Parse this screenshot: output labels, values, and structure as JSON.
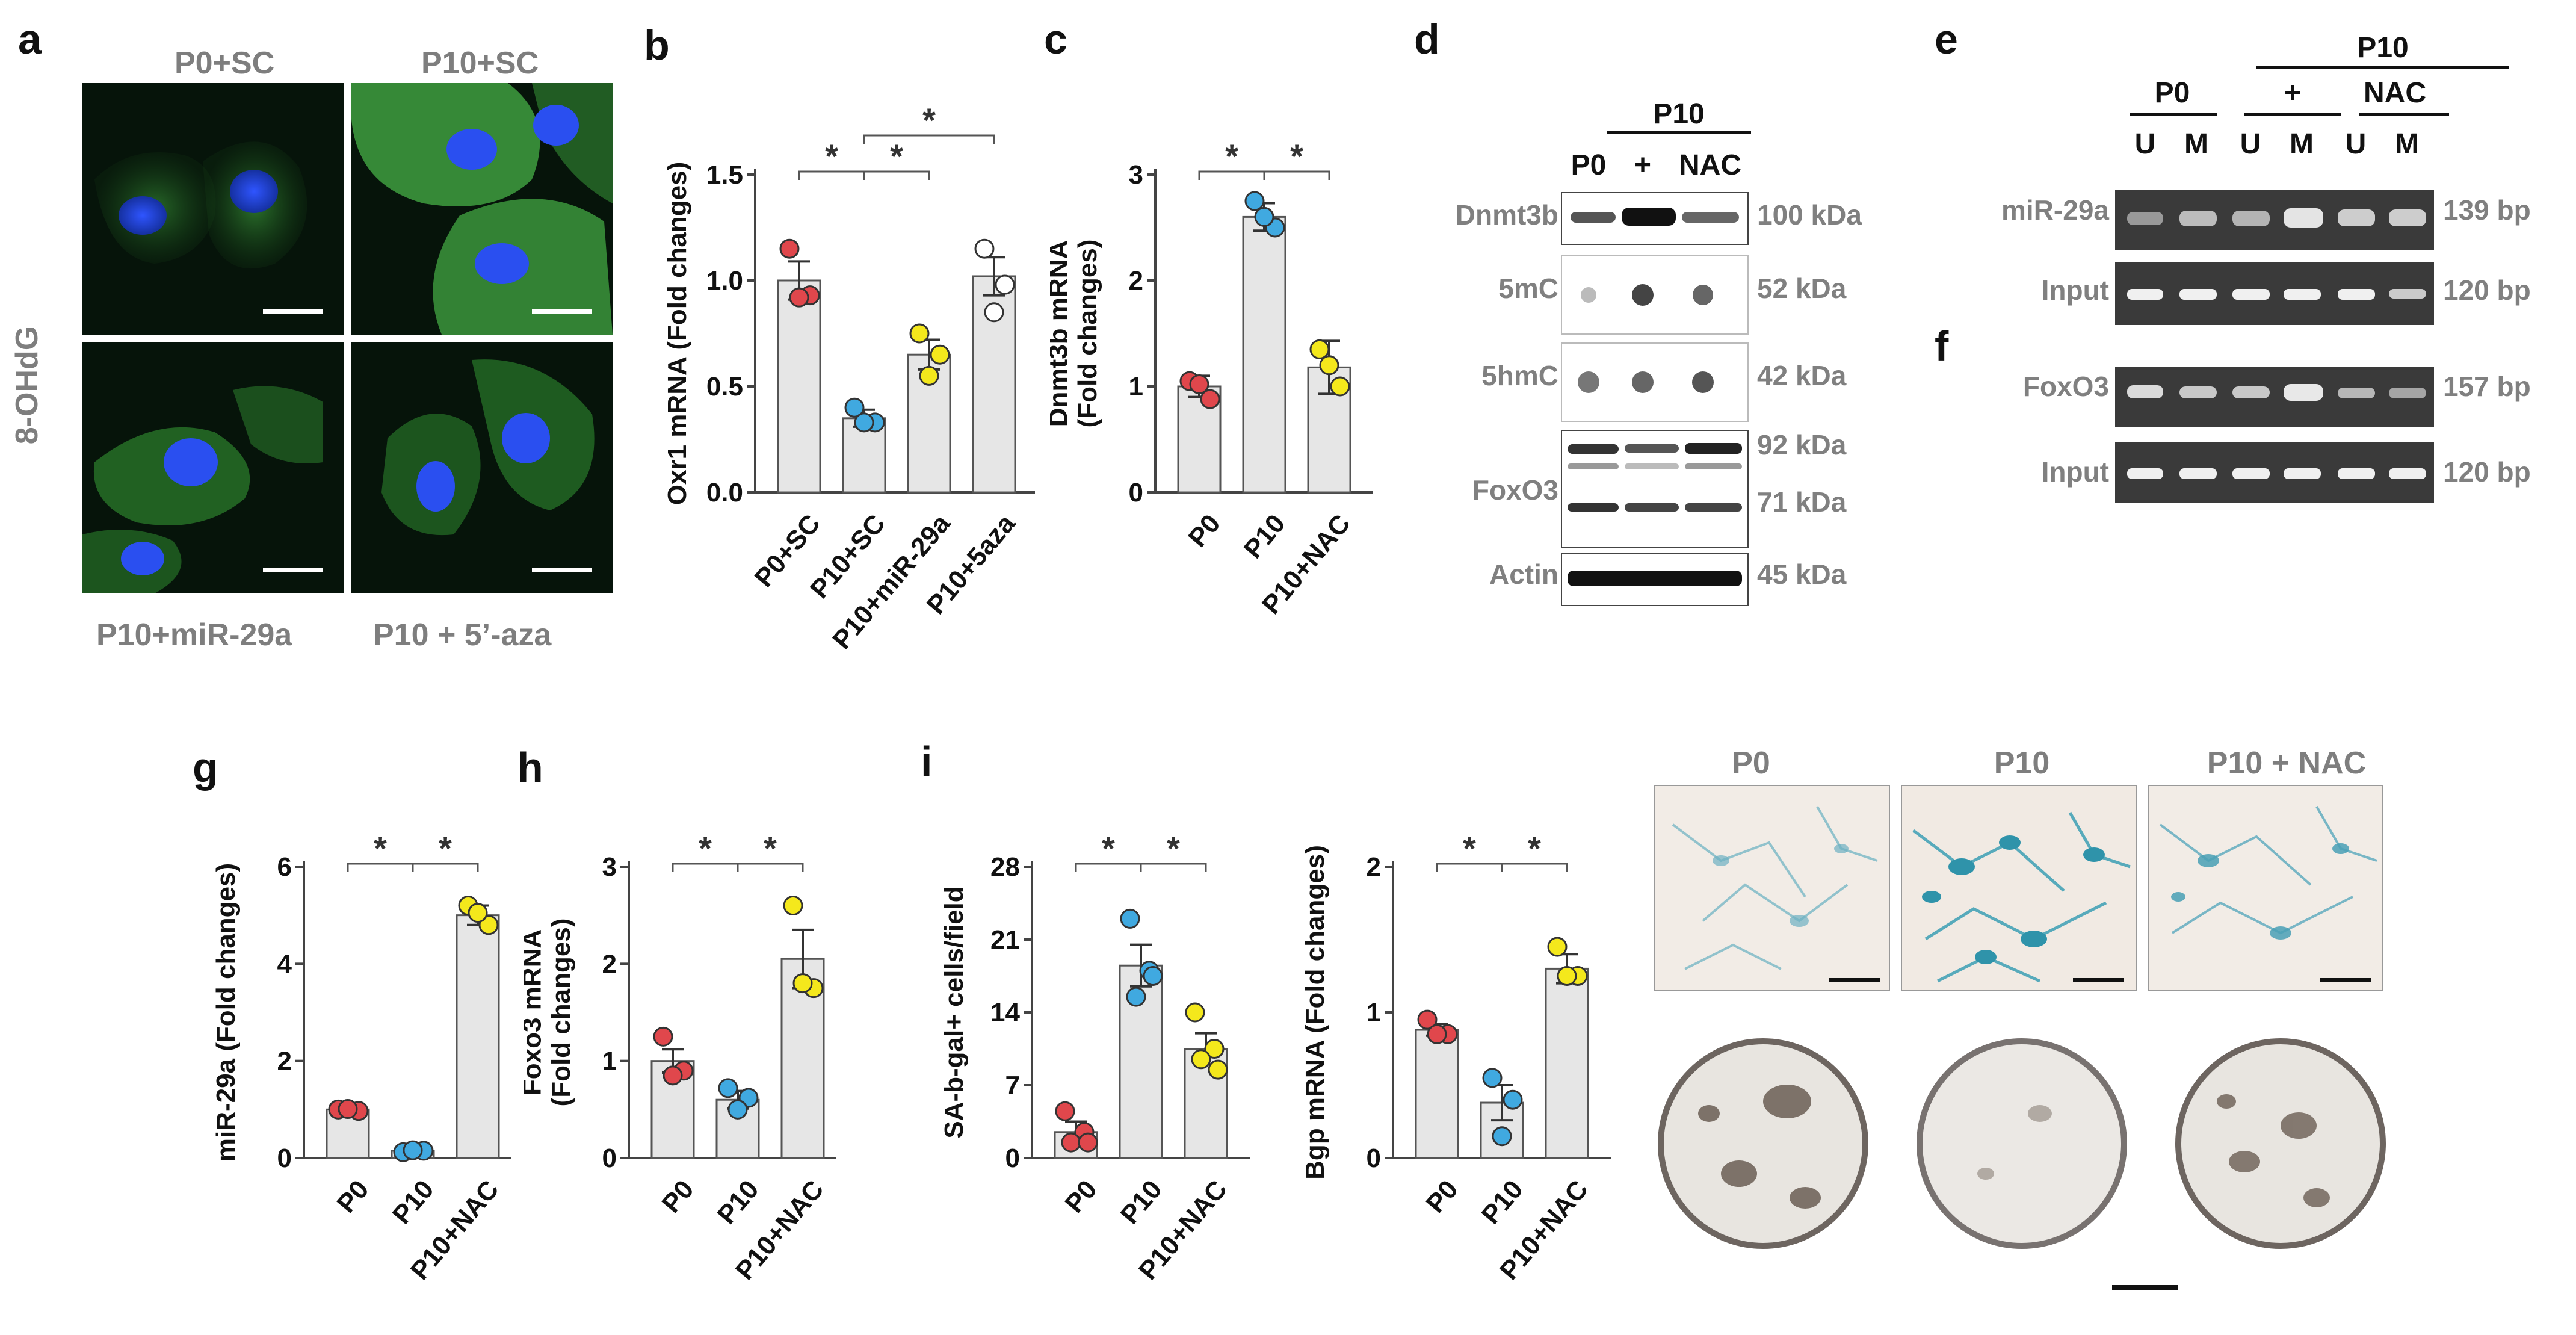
{
  "panel_labels": [
    "a",
    "b",
    "c",
    "d",
    "e",
    "f",
    "g",
    "h",
    "i"
  ],
  "panel_a": {
    "side_label": "8-OHdG",
    "captions": [
      "P0+SC",
      "P10+SC",
      "P10+miR-29a",
      "P10 + 5’-aza"
    ],
    "colors": {
      "cytoplasm": "#2f8f2f",
      "nucleus": "#1d3fd0",
      "background": "#06140a"
    }
  },
  "chart_data": [
    {
      "panel": "b",
      "type": "bar",
      "ylabel": "Oxr1 mRNA (Fold changes)",
      "categories": [
        "P0+SC",
        "P10+SC",
        "P10+miR-29a",
        "P10+5aza"
      ],
      "values": [
        1.0,
        0.35,
        0.65,
        1.02
      ],
      "errors": [
        0.09,
        0.04,
        0.07,
        0.09
      ],
      "points": [
        [
          1.15,
          0.93,
          0.92
        ],
        [
          0.4,
          0.33,
          0.33
        ],
        [
          0.75,
          0.65,
          0.55
        ],
        [
          1.15,
          0.98,
          0.85
        ]
      ],
      "point_colors": [
        "#e0474c",
        "#40a9e0",
        "#f4e81c",
        "#ffffff"
      ],
      "ylim": [
        0,
        1.5
      ],
      "yticks": [
        "0.0",
        "0.5",
        "1.0",
        "1.5"
      ],
      "significance": [
        [
          1,
          2
        ],
        [
          2,
          3
        ],
        [
          2,
          4
        ]
      ]
    },
    {
      "panel": "c",
      "type": "bar",
      "ylabel": "Dnmt3b mRNA (Fold changes)",
      "categories": [
        "P0",
        "P10",
        "P10+NAC"
      ],
      "values": [
        1.0,
        2.6,
        1.18
      ],
      "errors": [
        0.1,
        0.13,
        0.25
      ],
      "points": [
        [
          1.05,
          0.88,
          1.02
        ],
        [
          2.75,
          2.5,
          2.6
        ],
        [
          1.35,
          1.0,
          1.2
        ]
      ],
      "point_colors": [
        "#e0474c",
        "#40a9e0",
        "#f4e81c"
      ],
      "ylim": [
        0,
        3
      ],
      "yticks": [
        "0",
        "1",
        "2",
        "3"
      ],
      "significance": [
        [
          1,
          2
        ],
        [
          2,
          3
        ]
      ]
    },
    {
      "panel": "g",
      "type": "bar",
      "ylabel": "miR-29a (Fold changes)",
      "categories": [
        "P0",
        "P10",
        "P10+NAC"
      ],
      "values": [
        1.0,
        0.15,
        5.0
      ],
      "errors": [
        0.03,
        0.03,
        0.2
      ],
      "points": [
        [
          1.0,
          0.97,
          1.01
        ],
        [
          0.12,
          0.15,
          0.16
        ],
        [
          5.2,
          4.8,
          5.05
        ]
      ],
      "point_colors": [
        "#e0474c",
        "#40a9e0",
        "#f4e81c"
      ],
      "ylim": [
        0,
        6
      ],
      "yticks": [
        "0",
        "2",
        "4",
        "6"
      ],
      "significance": [
        [
          1,
          2
        ],
        [
          2,
          3
        ]
      ]
    },
    {
      "panel": "h",
      "type": "bar",
      "ylabel": "Foxo3 mRNA (Fold changes)",
      "categories": [
        "P0",
        "P10",
        "P10+NAC"
      ],
      "values": [
        1.0,
        0.6,
        2.05
      ],
      "errors": [
        0.12,
        0.09,
        0.3
      ],
      "points": [
        [
          1.25,
          0.9,
          0.85
        ],
        [
          0.72,
          0.62,
          0.5
        ],
        [
          2.6,
          1.75,
          1.8
        ]
      ],
      "point_colors": [
        "#e0474c",
        "#40a9e0",
        "#f4e81c"
      ],
      "ylim": [
        0,
        3
      ],
      "yticks": [
        "0",
        "1",
        "2",
        "3"
      ],
      "significance": [
        [
          1,
          2
        ],
        [
          2,
          3
        ]
      ]
    },
    {
      "panel": "i1",
      "type": "bar",
      "ylabel": "SA-b-gal+ cells/field",
      "categories": [
        "P0",
        "P10",
        "P10+NAC"
      ],
      "values": [
        2.5,
        18.5,
        10.5
      ],
      "errors": [
        1.0,
        2.0,
        1.5
      ],
      "points": [
        [
          4.5,
          2.5,
          1.5,
          1.5
        ],
        [
          23,
          18,
          15.5,
          17.5
        ],
        [
          14,
          10.5,
          9.5,
          8.5
        ]
      ],
      "point_colors": [
        "#e0474c",
        "#40a9e0",
        "#f4e81c"
      ],
      "ylim": [
        0,
        28
      ],
      "yticks": [
        "0",
        "7",
        "14",
        "21",
        "28"
      ],
      "significance": [
        [
          1,
          2
        ],
        [
          2,
          3
        ]
      ]
    },
    {
      "panel": "i2",
      "type": "bar",
      "ylabel": "Bgp mRNA (Fold changes)",
      "categories": [
        "P0",
        "P10",
        "P10+NAC"
      ],
      "values": [
        0.88,
        0.38,
        1.3
      ],
      "errors": [
        0.04,
        0.12,
        0.1
      ],
      "points": [
        [
          0.95,
          0.85,
          0.85
        ],
        [
          0.55,
          0.4,
          0.15
        ],
        [
          1.45,
          1.25,
          1.25
        ]
      ],
      "point_colors": [
        "#e0474c",
        "#40a9e0",
        "#f4e81c"
      ],
      "ylim": [
        0,
        2
      ],
      "yticks": [
        "0",
        "1",
        "2"
      ],
      "significance": [
        [
          1,
          2
        ],
        [
          2,
          3
        ]
      ]
    }
  ],
  "panel_d": {
    "group_label": "P10",
    "lanes": [
      "P0",
      "+",
      "NAC"
    ],
    "rows": [
      {
        "name": "Dnmt3b",
        "size": "100 kDa"
      },
      {
        "name": "5mC",
        "size": "52 kDa"
      },
      {
        "name": "5hmC",
        "size": "42 kDa"
      },
      {
        "name": "FoxO3",
        "size": "92 kDa",
        "size2": "71 kDa"
      },
      {
        "name": "Actin",
        "size": "45 kDa"
      }
    ]
  },
  "panel_e": {
    "group_label": "P10",
    "sub_groups": [
      "P0",
      "+",
      "NAC"
    ],
    "lanes": [
      "U",
      "M",
      "U",
      "M",
      "U",
      "M"
    ],
    "rows": [
      {
        "name": "miR-29a",
        "size": "139 bp"
      },
      {
        "name": "Input",
        "size": "120 bp"
      }
    ]
  },
  "panel_f": {
    "rows": [
      {
        "name": "FoxO3",
        "size": "157 bp"
      },
      {
        "name": "Input",
        "size": "120 bp"
      }
    ]
  },
  "panel_i_images": {
    "captions": [
      "P0",
      "P10",
      "P10 + NAC"
    ],
    "stain_color": "#4aa6b8"
  }
}
